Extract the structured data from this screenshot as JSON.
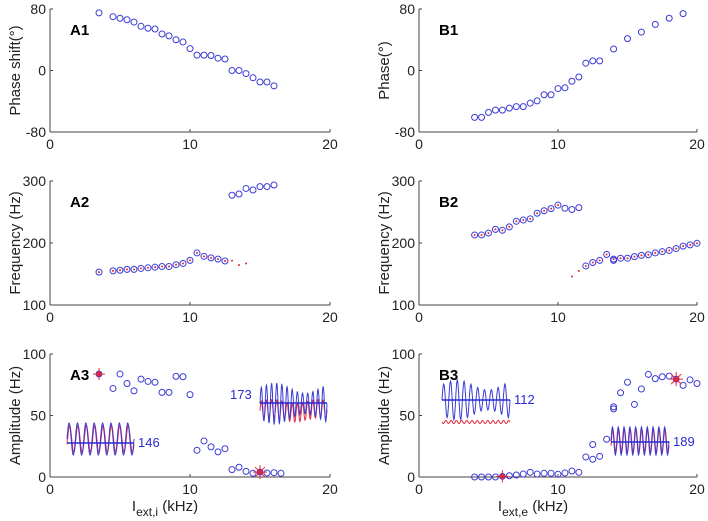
{
  "colors": {
    "circle": "#3b3bd6",
    "red": "#e0283c",
    "axis": "#444"
  },
  "chart_data": [
    {
      "id": "A1",
      "type": "scatter",
      "panel_label": "A1",
      "ylabel": "Phase shift(°)",
      "xlabel": "",
      "xlim": [
        0,
        20
      ],
      "ylim": [
        -80,
        80
      ],
      "xticks": [
        "0",
        "10",
        "20"
      ],
      "yticks": [
        "-80",
        "0",
        "80"
      ],
      "x": [
        3.5,
        4.5,
        5,
        5.5,
        6,
        6.5,
        7,
        7.5,
        8,
        8.5,
        9,
        9.5,
        10,
        10.5,
        11,
        11.5,
        12,
        12.5,
        13,
        13.5,
        14,
        14.5,
        15,
        15.5,
        16
      ],
      "y": [
        75,
        70,
        68,
        66,
        63,
        57.5,
        55,
        54,
        47.5,
        45,
        40,
        37,
        28.5,
        20,
        20,
        19.5,
        16,
        15,
        0,
        0,
        -4,
        -9.5,
        -15,
        -15,
        -20
      ]
    },
    {
      "id": "B1",
      "type": "scatter",
      "panel_label": "B1",
      "ylabel": "Phase(°)",
      "xlabel": "",
      "xlim": [
        0,
        20
      ],
      "ylim": [
        -80,
        80
      ],
      "xticks": [
        "0",
        "10",
        "20"
      ],
      "yticks": [
        "-80",
        "0",
        "80"
      ],
      "x": [
        4,
        4.5,
        5,
        5.5,
        6,
        6.5,
        7,
        7.5,
        8,
        8.5,
        9,
        9.5,
        10,
        10.5,
        11,
        11.5,
        12,
        12.5,
        13,
        14,
        15,
        16,
        17,
        18,
        19
      ],
      "y": [
        -61,
        -61,
        -54.5,
        -51.5,
        -51.5,
        -49,
        -47,
        -47,
        -42.5,
        -39.5,
        -31.5,
        -31.5,
        -23.5,
        -22.5,
        -14,
        -8.5,
        9.5,
        12.5,
        12.5,
        28,
        41.5,
        50,
        60,
        68,
        74
      ]
    },
    {
      "id": "A2",
      "type": "scatter",
      "panel_label": "A2",
      "ylabel": "Frequency (Hz)",
      "xlabel": "",
      "xlim": [
        0,
        20
      ],
      "ylim": [
        100,
        300
      ],
      "xticks": [
        "0",
        "10",
        "20"
      ],
      "yticks": [
        "100",
        "200",
        "300"
      ],
      "x": [
        3.5,
        4.5,
        5,
        5.5,
        6,
        6.5,
        7,
        7.5,
        8,
        8.5,
        9,
        9.5,
        10,
        10.5,
        11,
        11.5,
        12,
        12.5,
        13,
        13.5,
        14,
        14.5,
        15,
        15.5,
        16
      ],
      "y": [
        153,
        155,
        156,
        157.5,
        157.5,
        159,
        160,
        161,
        162,
        162,
        165,
        167,
        172,
        184,
        178.5,
        176,
        174,
        171,
        277,
        279,
        288,
        285.5,
        291,
        291,
        293.5
      ],
      "red_dots": {
        "x": [
          3.5,
          4.5,
          5,
          5.5,
          6,
          6.5,
          7,
          7.5,
          8,
          8.5,
          9,
          9.5,
          10,
          10.5,
          11,
          11.5,
          12,
          12.5,
          13,
          13.5,
          14
        ],
        "y": [
          153,
          155,
          156,
          157.5,
          157.5,
          159,
          160,
          161,
          162,
          162,
          165,
          167,
          172,
          184,
          178.5,
          176,
          174,
          171,
          171.5,
          164.5,
          167
        ]
      }
    },
    {
      "id": "B2",
      "type": "scatter",
      "panel_label": "B2",
      "ylabel": "Frequency (Hz)",
      "xlabel": "",
      "xlim": [
        0,
        20
      ],
      "ylim": [
        100,
        300
      ],
      "xticks": [
        "0",
        "10",
        "20"
      ],
      "yticks": [
        "100",
        "200",
        "300"
      ],
      "x": [
        4,
        4.5,
        5,
        5.5,
        6,
        6.5,
        7,
        7.5,
        8,
        8.5,
        9,
        9.5,
        10,
        10.5,
        11,
        11.5,
        12,
        12.5,
        13,
        13.5,
        14,
        14,
        14.5,
        15,
        15.5,
        16,
        16.5,
        17,
        17.5,
        18,
        18.5,
        19,
        19.5,
        20
      ],
      "y": [
        213,
        213,
        216,
        222,
        220.5,
        226,
        235,
        237,
        239,
        248,
        252,
        255.5,
        261,
        256,
        254,
        257,
        163,
        168.5,
        172,
        181.5,
        172,
        174,
        175.5,
        175.5,
        178,
        180,
        181,
        184,
        186,
        188,
        191,
        195,
        197,
        199.5
      ],
      "red_dots": {
        "x": [
          4,
          4.5,
          5,
          5.5,
          6,
          6.5,
          7,
          7.5,
          8,
          8.5,
          9,
          9.5,
          10,
          11,
          11.5,
          12,
          12.5,
          13,
          13.5,
          14,
          14.5,
          15,
          15.5,
          16,
          16.5,
          17,
          17.5,
          18,
          18.5,
          19,
          19.5,
          20
        ],
        "y": [
          213,
          213,
          216,
          222,
          220.5,
          226,
          235,
          237,
          239,
          248,
          252,
          255.5,
          261,
          146,
          155,
          163,
          168.5,
          172,
          181.5,
          174,
          175.5,
          175.5,
          178,
          180,
          181,
          184,
          186,
          188,
          191,
          195,
          197,
          199.5
        ]
      }
    },
    {
      "id": "A3",
      "type": "scatter",
      "panel_label": "A3",
      "ylabel": "Amplitude (Hz)",
      "xlabel": "I",
      "xlabel_sub": "ext,i",
      "xlabel_unit": " (kHz)",
      "xlim": [
        0,
        20
      ],
      "ylim": [
        0,
        100
      ],
      "xticks": [
        "0",
        "10",
        "20"
      ],
      "yticks": [
        "0",
        "50",
        "100"
      ],
      "x": [
        4.5,
        5,
        5.5,
        6,
        6.5,
        7,
        7.5,
        8,
        8.5,
        9,
        9.5,
        10,
        10.5,
        11,
        11.5,
        12,
        12.5,
        13,
        13.5,
        14,
        14.5,
        15.5,
        16,
        16.5
      ],
      "y": [
        72,
        83.7,
        76,
        70,
        79.6,
        77.7,
        77,
        68.8,
        68.8,
        81.8,
        81.5,
        67,
        21.7,
        29.3,
        24.5,
        20.4,
        23,
        6,
        7.9,
        4.6,
        3,
        3.3,
        3.5,
        3
      ],
      "markers": [
        {
          "x": 3.5,
          "y": 83.7,
          "shape": "plus"
        },
        {
          "x": 15,
          "y": 4,
          "shape": "star"
        }
      ],
      "insets": [
        {
          "label": "146",
          "freq_cycles": 8,
          "red_in_phase": true
        },
        {
          "label": "173",
          "freq_cycles": 13,
          "red_in_phase": false
        }
      ]
    },
    {
      "id": "B3",
      "type": "scatter",
      "panel_label": "B3",
      "ylabel": "Amplitude (Hz)",
      "xlabel": "I",
      "xlabel_sub": "ext,e",
      "xlabel_unit": " (kHz)",
      "xlim": [
        0,
        20
      ],
      "ylim": [
        0,
        100
      ],
      "xticks": [
        "0",
        "10",
        "20"
      ],
      "yticks": [
        "0",
        "50",
        "100"
      ],
      "x": [
        4,
        4.5,
        5,
        5.5,
        6.5,
        7,
        7.5,
        8,
        8.5,
        9,
        9.5,
        10,
        10.5,
        11,
        11.5,
        12,
        12.5,
        12.5,
        13,
        13.5,
        14,
        14,
        14.5,
        15,
        15.5,
        16,
        16.5,
        17,
        17.5,
        18,
        19,
        19.5,
        20
      ],
      "y": [
        0,
        0,
        0,
        0,
        1,
        1.6,
        2.4,
        3.8,
        2.4,
        3,
        3,
        2.2,
        3.3,
        4.9,
        3.8,
        16.3,
        14.4,
        26.4,
        16.8,
        30.7,
        57,
        55.4,
        68.5,
        77,
        59,
        71.5,
        83.4,
        80,
        81.5,
        82,
        74.5,
        79,
        76
      ],
      "markers": [
        {
          "x": 6,
          "y": 0.5,
          "shape": "plus"
        },
        {
          "x": 18.5,
          "y": 79.6,
          "shape": "star"
        }
      ],
      "insets": [
        {
          "label": "112",
          "freq_cycles": 10,
          "red_in_phase": false
        },
        {
          "label": "189",
          "freq_cycles": 10,
          "red_in_phase": true
        }
      ]
    }
  ]
}
